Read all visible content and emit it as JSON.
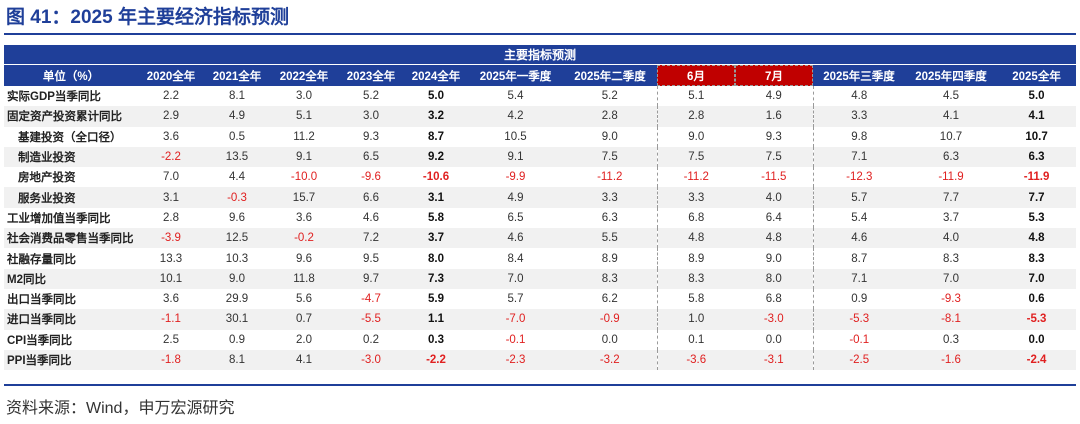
{
  "figure_title": "图 41：2025 年主要经济指标预测",
  "table_title": "主要指标预测",
  "headers": [
    "单位（%）",
    "2020全年",
    "2021全年",
    "2022全年",
    "2023全年",
    "2024全年",
    "2025年一季度",
    "2025年二季度",
    "6月",
    "7月",
    "2025年三季度",
    "2025年四季度",
    "2025全年"
  ],
  "highlight_header_indexes": [
    8,
    9
  ],
  "accent_colors": {
    "header_blue": "#1f3f99",
    "highlight_red": "#c00000",
    "negative_red": "#e02020"
  },
  "rows": [
    {
      "label": "实际GDP当季同比",
      "indent": false,
      "values": [
        "2.2",
        "8.1",
        "3.0",
        "5.2",
        "5.0",
        "5.4",
        "5.2",
        "5.1",
        "4.9",
        "4.8",
        "4.5",
        "5.0"
      ]
    },
    {
      "label": "固定资产投资累计同比",
      "indent": false,
      "values": [
        "2.9",
        "4.9",
        "5.1",
        "3.0",
        "3.2",
        "4.2",
        "2.8",
        "2.8",
        "1.6",
        "3.3",
        "4.1",
        "4.1"
      ]
    },
    {
      "label": "基建投资（全口径）",
      "indent": true,
      "values": [
        "3.6",
        "0.5",
        "11.2",
        "9.3",
        "8.7",
        "10.5",
        "9.0",
        "9.0",
        "9.3",
        "9.8",
        "10.7",
        "10.7"
      ]
    },
    {
      "label": "制造业投资",
      "indent": true,
      "values": [
        "-2.2",
        "13.5",
        "9.1",
        "6.5",
        "9.2",
        "9.1",
        "7.5",
        "7.5",
        "7.5",
        "7.1",
        "6.3",
        "6.3"
      ]
    },
    {
      "label": "房地产投资",
      "indent": true,
      "values": [
        "7.0",
        "4.4",
        "-10.0",
        "-9.6",
        "-10.6",
        "-9.9",
        "-11.2",
        "-11.2",
        "-11.5",
        "-12.3",
        "-11.9",
        "-11.9"
      ]
    },
    {
      "label": "服务业投资",
      "indent": true,
      "values": [
        "3.1",
        "-0.3",
        "15.7",
        "6.6",
        "3.1",
        "4.9",
        "3.3",
        "3.3",
        "4.0",
        "5.7",
        "7.7",
        "7.7"
      ]
    },
    {
      "label": "工业增加值当季同比",
      "indent": false,
      "values": [
        "2.8",
        "9.6",
        "3.6",
        "4.6",
        "5.8",
        "6.5",
        "6.3",
        "6.8",
        "6.4",
        "5.4",
        "3.7",
        "5.3"
      ]
    },
    {
      "label": "社会消费品零售当季同比",
      "indent": false,
      "values": [
        "-3.9",
        "12.5",
        "-0.2",
        "7.2",
        "3.7",
        "4.6",
        "5.5",
        "4.8",
        "4.8",
        "4.6",
        "4.0",
        "4.8"
      ]
    },
    {
      "label": "社融存量同比",
      "indent": false,
      "values": [
        "13.3",
        "10.3",
        "9.6",
        "9.5",
        "8.0",
        "8.4",
        "8.9",
        "8.9",
        "9.0",
        "8.7",
        "8.3",
        "8.3"
      ]
    },
    {
      "label": "M2同比",
      "indent": false,
      "values": [
        "10.1",
        "9.0",
        "11.8",
        "9.7",
        "7.3",
        "7.0",
        "8.3",
        "8.3",
        "8.0",
        "7.1",
        "7.0",
        "7.0"
      ]
    },
    {
      "label": "出口当季同比",
      "indent": false,
      "values": [
        "3.6",
        "29.9",
        "5.6",
        "-4.7",
        "5.9",
        "5.7",
        "6.2",
        "5.8",
        "6.8",
        "0.9",
        "-9.3",
        "0.6"
      ]
    },
    {
      "label": "进口当季同比",
      "indent": false,
      "values": [
        "-1.1",
        "30.1",
        "0.7",
        "-5.5",
        "1.1",
        "-7.0",
        "-0.9",
        "1.0",
        "-3.0",
        "-5.3",
        "-8.1",
        "-5.3"
      ]
    },
    {
      "label": "CPI当季同比",
      "indent": false,
      "values": [
        "2.5",
        "0.9",
        "2.0",
        "0.2",
        "0.3",
        "-0.1",
        "0.0",
        "0.1",
        "0.0",
        "-0.1",
        "0.3",
        "0.0"
      ]
    },
    {
      "label": "PPI当季同比",
      "indent": false,
      "values": [
        "-1.8",
        "8.1",
        "4.1",
        "-3.0",
        "-2.2",
        "-2.3",
        "-3.2",
        "-3.6",
        "-3.1",
        "-2.5",
        "-1.6",
        "-2.4"
      ]
    }
  ],
  "source": "资料来源：Wind，申万宏源研究"
}
